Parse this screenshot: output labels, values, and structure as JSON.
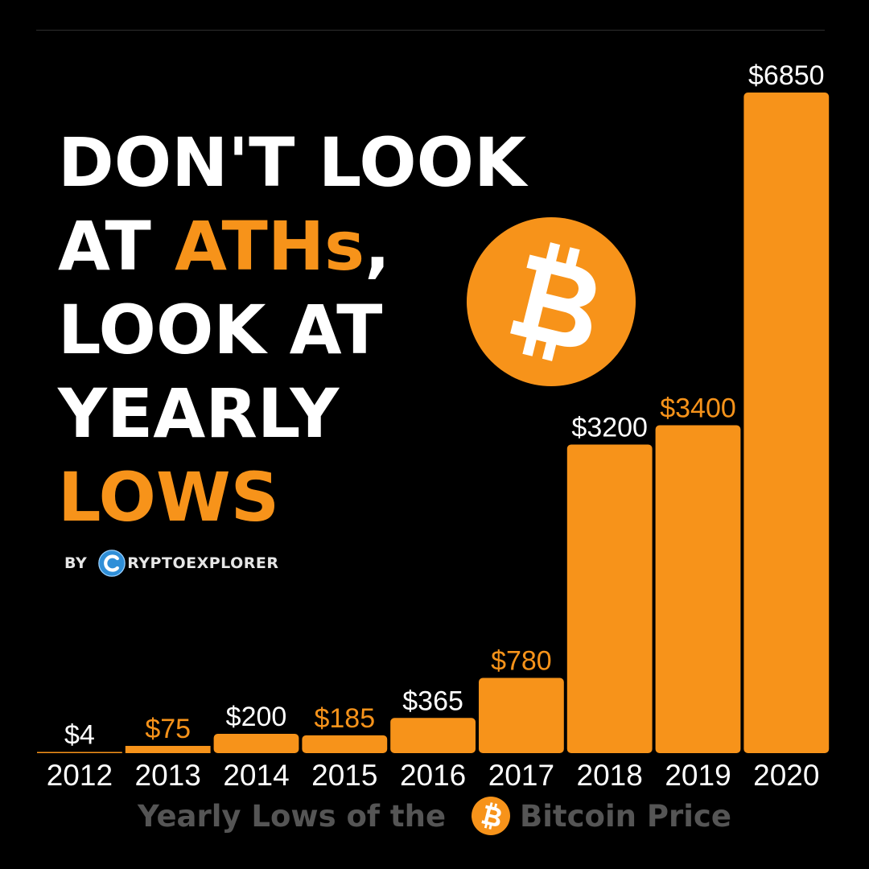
{
  "headline": {
    "line1": "DON'T LOOK",
    "line2_prefix": "AT ",
    "line2_highlight": "ATHs",
    "line2_suffix": ",",
    "line3": "LOOK AT",
    "line4": "YEARLY",
    "line5": "LOWS"
  },
  "byline": {
    "by": "BY",
    "brand": "RYPTOEXPLORER"
  },
  "caption": {
    "part1": "Yearly Lows of the",
    "part2": "Bitcoin Price"
  },
  "icons": {
    "main_logo": "bitcoin-logo-icon",
    "brand_logo": "cryptoexplorer-logo-icon",
    "caption_logo": "bitcoin-logo-icon"
  },
  "colors": {
    "accent": "#f7931a",
    "label_white": "#ffffff",
    "caption_gray": "#555555",
    "background": "#000000"
  },
  "chart_data": {
    "type": "bar",
    "categories": [
      "2012",
      "2013",
      "2014",
      "2015",
      "2016",
      "2017",
      "2018",
      "2019",
      "2020"
    ],
    "values": [
      4,
      75,
      200,
      185,
      365,
      780,
      3200,
      3400,
      6850
    ],
    "value_labels": [
      "$4",
      "$75",
      "$200",
      "$185",
      "$365",
      "$780",
      "$3200",
      "$3400",
      "$6850"
    ],
    "value_label_colors": [
      "#ffffff",
      "#f7931a",
      "#ffffff",
      "#f7931a",
      "#ffffff",
      "#f7931a",
      "#ffffff",
      "#f7931a",
      "#ffffff"
    ],
    "bar_color": "#f7931a",
    "title": "",
    "xlabel": "Yearly Lows of the Bitcoin Price",
    "ylabel": "",
    "ylim": [
      0,
      6850
    ],
    "grid": false,
    "legend": "none"
  }
}
